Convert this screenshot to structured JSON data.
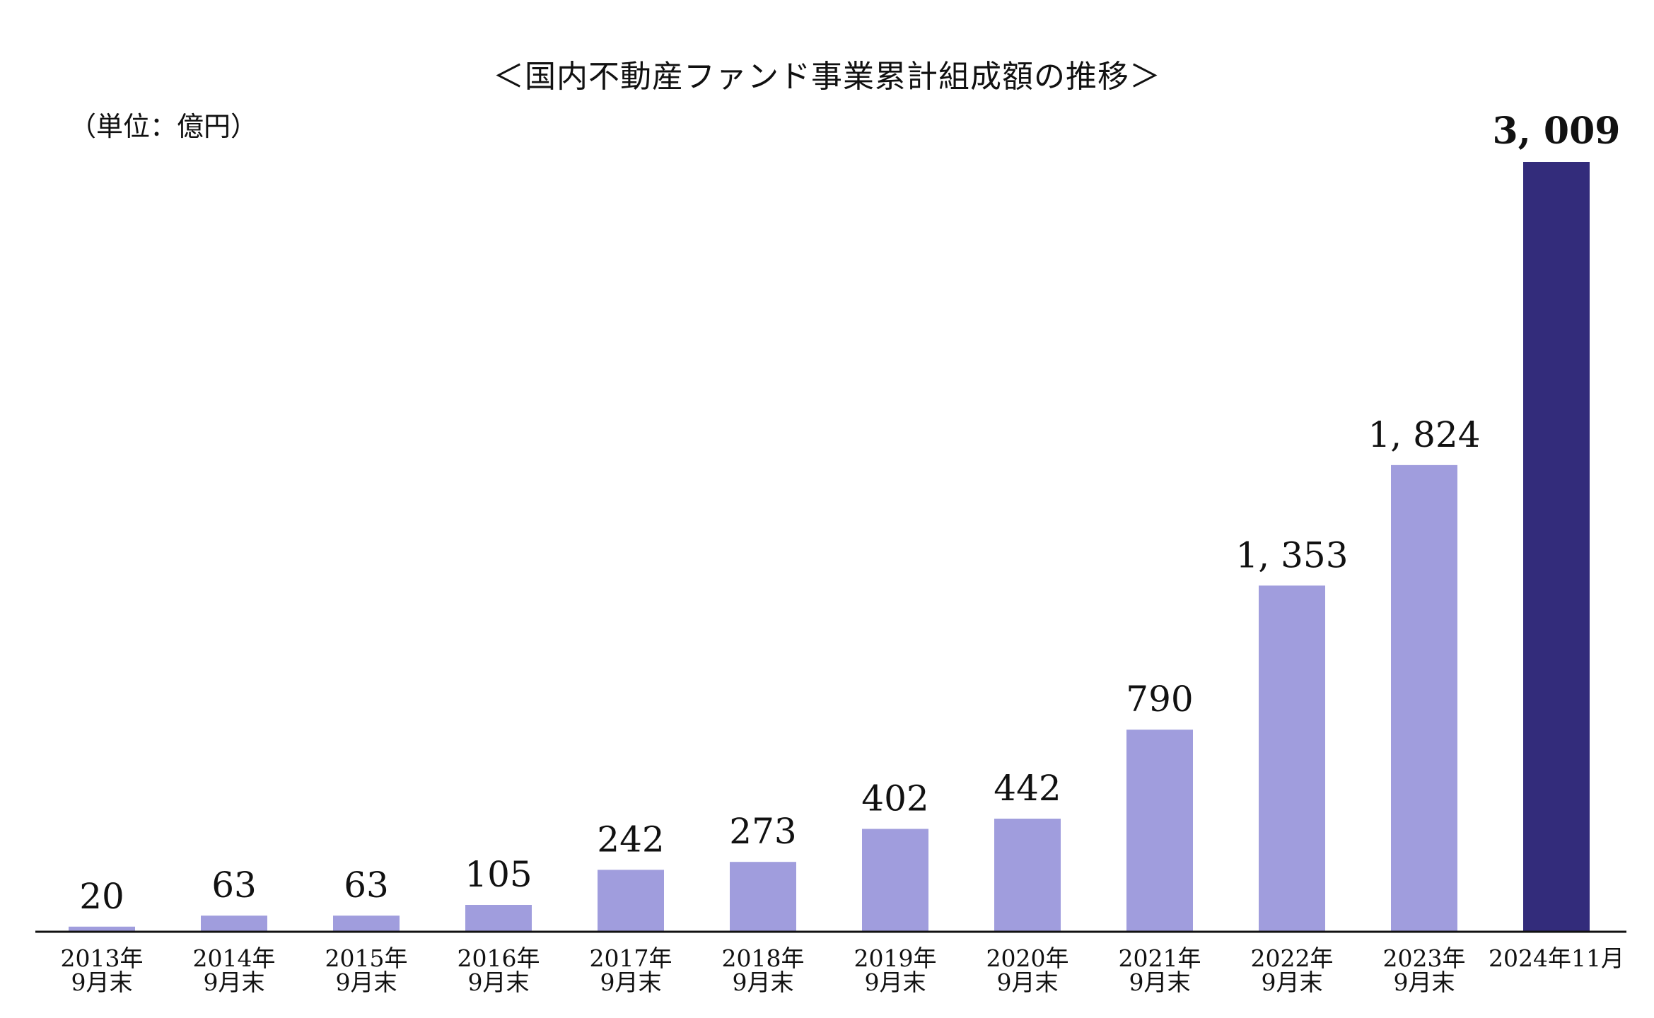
{
  "chart_data": {
    "type": "bar",
    "title": "＜国内不動産ファンド事業累計組成額の推移＞",
    "unit": "（単位：億円）",
    "categories": [
      [
        "2013年",
        "9月末"
      ],
      [
        "2014年",
        "9月末"
      ],
      [
        "2015年",
        "9月末"
      ],
      [
        "2016年",
        "9月末"
      ],
      [
        "2017年",
        "9月末"
      ],
      [
        "2018年",
        "9月末"
      ],
      [
        "2019年",
        "9月末"
      ],
      [
        "2020年",
        "9月末"
      ],
      [
        "2021年",
        "9月末"
      ],
      [
        "2022年",
        "9月末"
      ],
      [
        "2023年",
        "9月末"
      ],
      [
        "2024年11月"
      ]
    ],
    "values": [
      20,
      63,
      63,
      105,
      242,
      273,
      402,
      442,
      790,
      1353,
      1824,
      3009
    ],
    "value_labels": [
      "20",
      "63",
      "63",
      "105",
      "242",
      "273",
      "402",
      "442",
      "790",
      "1, 353",
      "1, 824",
      "3, 009"
    ],
    "ylim": [
      0,
      3009
    ],
    "grid": false,
    "legend": "none",
    "colors": {
      "bar": "#A09DDD",
      "highlight_bar": "#332C7B",
      "axis": "#111111"
    }
  }
}
